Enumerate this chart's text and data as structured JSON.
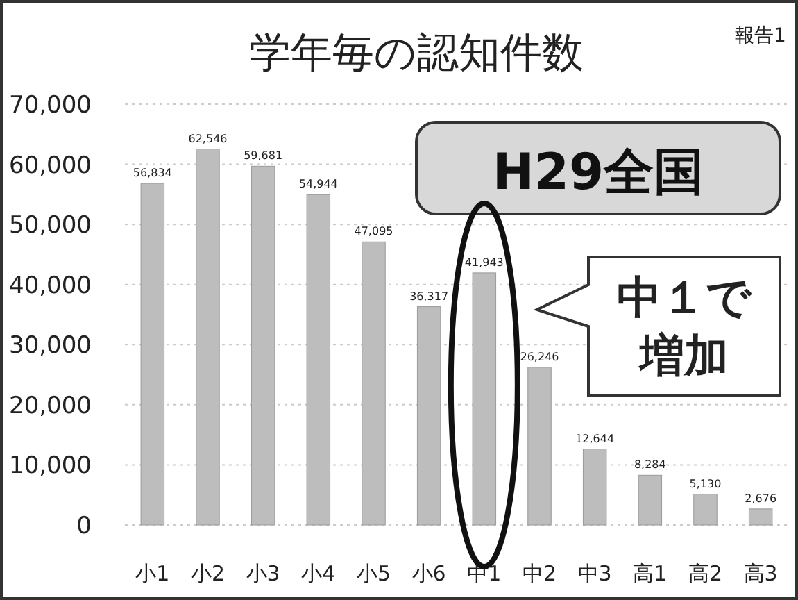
{
  "chart_data": {
    "type": "bar",
    "title": "学年毎の認知件数",
    "categories": [
      "小1",
      "小2",
      "小3",
      "小4",
      "小5",
      "小6",
      "中1",
      "中2",
      "中3",
      "高1",
      "高2",
      "高3"
    ],
    "values": [
      56834,
      62546,
      59681,
      54944,
      47095,
      36317,
      41943,
      26246,
      12644,
      8284,
      5130,
      2676
    ],
    "value_labels": [
      "56,834",
      "62,546",
      "59,681",
      "54,944",
      "47,095",
      "36,317",
      "41,943",
      "26,246",
      "12,644",
      "8,284",
      "5,130",
      "2,676"
    ],
    "color": "#bdbdbd",
    "ylim": [
      0,
      70000
    ],
    "yticks": [
      0,
      {
        "value": 10000,
        "label": "10,000"
      },
      {
        "value": 20000,
        "label": "20,000"
      },
      {
        "value": 30000,
        "label": "30,000"
      },
      {
        "value": 40000,
        "label": "40,000"
      },
      {
        "value": 50000,
        "label": "50,000"
      },
      {
        "value": 60000,
        "label": "60,000"
      },
      {
        "value": 70000,
        "label": "70,000"
      }
    ],
    "grid": "y",
    "annotations": [
      "報告1",
      "H29全国",
      {
        "text": "中１で増加",
        "x": "中1",
        "y": 41943
      }
    ]
  }
}
